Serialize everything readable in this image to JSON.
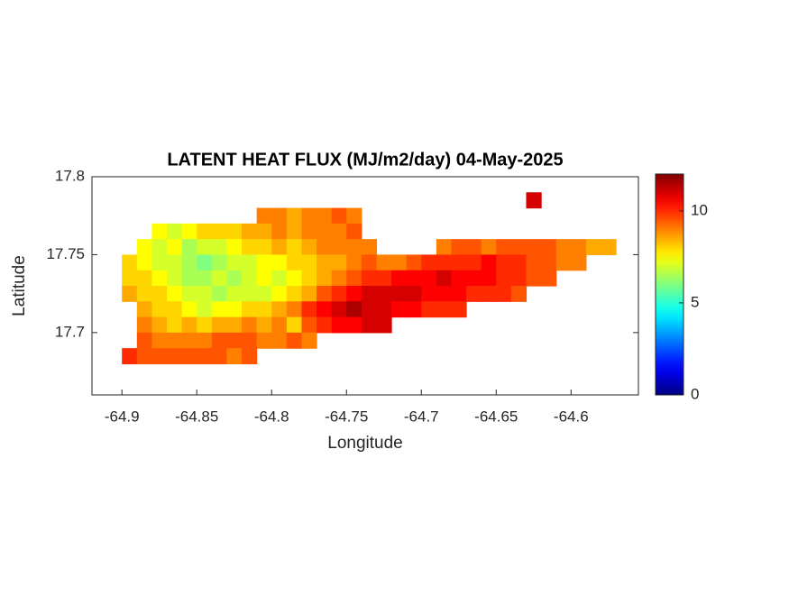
{
  "chart_data": {
    "type": "heatmap",
    "title": "LATENT HEAT FLUX (MJ/m2/day) 04-May-2025",
    "xlabel": "Longitude",
    "ylabel": "Latitude",
    "xlim": [
      -64.92,
      -64.555
    ],
    "ylim": [
      17.66,
      17.8
    ],
    "xticks": [
      -64.9,
      -64.85,
      -64.8,
      -64.75,
      -64.7,
      -64.65,
      -64.6
    ],
    "yticks": [
      17.7,
      17.75,
      17.8
    ],
    "colormap": "jet",
    "clim": [
      0,
      12
    ],
    "colorbar_ticks": [
      0,
      5,
      10
    ],
    "lon": [
      -64.895,
      -64.885,
      -64.875,
      -64.865,
      -64.855,
      -64.845,
      -64.835,
      -64.825,
      -64.815,
      -64.805,
      -64.795,
      -64.785,
      -64.775,
      -64.765,
      -64.755,
      -64.745,
      -64.735,
      -64.725,
      -64.715,
      -64.705,
      -64.695,
      -64.685,
      -64.675,
      -64.665,
      -64.655,
      -64.645,
      -64.635,
      -64.625,
      -64.615,
      -64.605,
      -64.595,
      -64.585,
      -64.575,
      -64.565
    ],
    "lat": [
      17.785,
      17.775,
      17.765,
      17.755,
      17.745,
      17.735,
      17.725,
      17.715,
      17.705,
      17.695,
      17.685
    ],
    "values": [
      [
        null,
        null,
        null,
        null,
        null,
        null,
        null,
        null,
        null,
        null,
        null,
        null,
        null,
        null,
        null,
        null,
        null,
        null,
        null,
        null,
        null,
        null,
        null,
        null,
        null,
        null,
        null,
        11,
        null,
        null,
        null,
        null,
        null,
        null
      ],
      [
        null,
        null,
        null,
        null,
        null,
        null,
        null,
        null,
        null,
        9,
        9,
        8.5,
        9,
        9,
        9.5,
        9,
        null,
        null,
        null,
        null,
        null,
        null,
        null,
        null,
        null,
        null,
        null,
        null,
        null,
        null,
        null,
        null,
        null,
        null
      ],
      [
        null,
        null,
        7.5,
        7,
        7.5,
        8,
        8,
        8,
        8.5,
        8.5,
        9,
        8.5,
        9,
        9,
        9,
        9.5,
        null,
        null,
        null,
        null,
        null,
        null,
        null,
        null,
        null,
        null,
        null,
        null,
        null,
        null,
        null,
        null,
        null,
        null
      ],
      [
        null,
        7.5,
        7,
        7.5,
        6.5,
        7,
        7,
        7.5,
        8,
        8,
        8.5,
        8,
        8.5,
        9,
        9,
        9,
        9,
        null,
        null,
        null,
        null,
        9,
        9.5,
        9.5,
        9,
        9.5,
        9.5,
        9.5,
        9.5,
        9,
        9,
        8.5,
        8.5,
        null
      ],
      [
        8,
        7.5,
        7,
        7,
        6.5,
        6,
        6.5,
        7,
        7,
        7.5,
        7.5,
        8,
        8,
        8.5,
        8.5,
        9,
        9.5,
        9,
        9,
        9.5,
        10,
        10,
        10,
        10,
        10.5,
        10,
        10,
        9.5,
        9.5,
        9,
        9,
        null,
        null,
        null
      ],
      [
        8,
        8,
        7.5,
        7,
        6.5,
        6.5,
        7,
        6.5,
        7,
        7.5,
        7,
        7.5,
        8,
        8.5,
        9,
        9.5,
        10,
        10,
        10.5,
        10.5,
        10.5,
        11,
        10.5,
        10.5,
        10.5,
        10,
        10,
        9.5,
        9.5,
        null,
        null,
        null,
        null,
        null
      ],
      [
        8.5,
        8,
        8,
        7.5,
        7,
        7,
        6.5,
        7,
        7,
        7,
        7.5,
        8,
        8.5,
        9.5,
        10,
        10.5,
        11,
        11,
        11,
        11,
        10.5,
        10.5,
        10.5,
        10,
        10,
        10,
        9.5,
        null,
        null,
        null,
        null,
        null,
        null,
        null
      ],
      [
        null,
        8.5,
        8,
        8,
        7.5,
        7,
        7.5,
        7.5,
        8,
        8,
        8.5,
        9,
        10,
        10.5,
        11,
        11.5,
        11,
        11,
        10.5,
        10.5,
        10,
        10,
        10,
        null,
        null,
        null,
        null,
        null,
        null,
        null,
        null,
        null,
        null,
        null
      ],
      [
        null,
        9,
        8.5,
        8,
        8.5,
        8,
        8.5,
        8.5,
        9,
        8.5,
        9,
        8,
        9.5,
        10,
        10.5,
        10.5,
        11,
        11,
        null,
        null,
        null,
        null,
        null,
        null,
        null,
        null,
        null,
        null,
        null,
        null,
        null,
        null,
        null,
        null
      ],
      [
        null,
        9.5,
        9,
        9,
        9,
        9,
        9.5,
        9.5,
        9.5,
        9,
        9,
        9.5,
        9,
        null,
        null,
        null,
        null,
        null,
        null,
        null,
        null,
        null,
        null,
        null,
        null,
        null,
        null,
        null,
        null,
        null,
        null,
        null,
        null,
        null
      ],
      [
        10,
        9.5,
        9.5,
        9.5,
        9.5,
        9.5,
        9.5,
        9,
        9.5,
        null,
        null,
        null,
        null,
        null,
        null,
        null,
        null,
        null,
        null,
        null,
        null,
        null,
        null,
        null,
        null,
        null,
        null,
        null,
        null,
        null,
        null,
        null,
        null,
        null
      ]
    ]
  }
}
